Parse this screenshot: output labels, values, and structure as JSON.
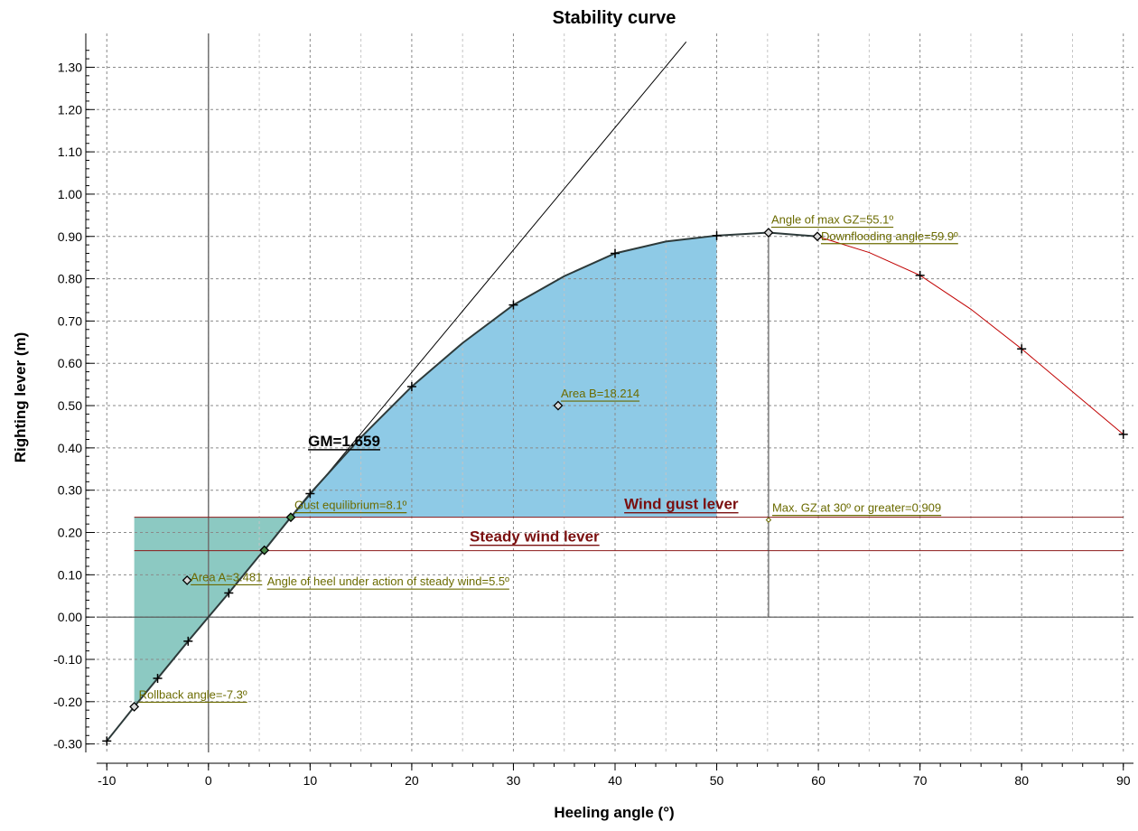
{
  "chart_data": {
    "type": "line",
    "title": "Stability curve",
    "xlabel": "Heeling angle (°)",
    "ylabel": "Righting lever (m)",
    "xlim": [
      -11,
      91
    ],
    "ylim": [
      -0.32,
      1.38
    ],
    "grid": true,
    "x_ticks": [
      "-10",
      "0",
      "10",
      "20",
      "30",
      "40",
      "50",
      "60",
      "70",
      "80",
      "90"
    ],
    "y_ticks": [
      "-0.30",
      "-0.20",
      "-0.10",
      "0.00",
      "0.10",
      "0.20",
      "0.30",
      "0.40",
      "0.50",
      "0.60",
      "0.70",
      "0.80",
      "0.90",
      "1.00",
      "1.10",
      "1.20",
      "1.30"
    ],
    "x_tick_values": [
      -10,
      0,
      10,
      20,
      30,
      40,
      50,
      60,
      70,
      80,
      90
    ],
    "y_tick_values": [
      -0.3,
      -0.2,
      -0.1,
      0.0,
      0.1,
      0.2,
      0.3,
      0.4,
      0.5,
      0.6,
      0.7,
      0.8,
      0.9,
      1.0,
      1.1,
      1.2,
      1.3
    ],
    "gz_curve": {
      "x": [
        -10,
        -7.3,
        -5,
        -2,
        0,
        2,
        5,
        5.5,
        8.1,
        10,
        15,
        20,
        25,
        30,
        35,
        40,
        45,
        50,
        55.1,
        59.9,
        65,
        70,
        75,
        80,
        85,
        90
      ],
      "y": [
        -0.293,
        -0.212,
        -0.145,
        -0.057,
        0.0,
        0.057,
        0.145,
        0.158,
        0.236,
        0.292,
        0.425,
        0.545,
        0.648,
        0.738,
        0.806,
        0.86,
        0.888,
        0.902,
        0.909,
        0.9,
        0.862,
        0.808,
        0.728,
        0.634,
        0.533,
        0.432
      ]
    },
    "downflooding_angle": 59.9,
    "gz_markers": {
      "x": [
        -10,
        -5,
        -2,
        2,
        10,
        20,
        30,
        40,
        50,
        70,
        80,
        90
      ],
      "y": [
        -0.293,
        -0.145,
        -0.057,
        0.057,
        0.292,
        0.545,
        0.738,
        0.86,
        0.902,
        0.808,
        0.634,
        0.432
      ]
    },
    "gm_tangent": {
      "x": [
        0,
        47
      ],
      "y": [
        0,
        1.36
      ]
    },
    "steady_wind_lever": 0.157,
    "wind_gust_lever": 0.236,
    "area_a_range": [
      -7.3,
      8.1
    ],
    "area_b_range": [
      8.1,
      50
    ],
    "max_gz_line": {
      "x": 55.1,
      "y": 0.909
    },
    "points": [
      {
        "x": -7.3,
        "y": -0.212,
        "label": "Rollback angle=-7.3º"
      },
      {
        "x": -2.1,
        "y": 0.087,
        "label": "Area A=3.481"
      },
      {
        "x": 5.5,
        "y": 0.158,
        "label": "Angle of heel under action of steady wind=5.5º"
      },
      {
        "x": 8.1,
        "y": 0.236,
        "label": "Gust equilibrium=8.1º"
      },
      {
        "x": 34.4,
        "y": 0.5,
        "label": "Area B=18.214"
      },
      {
        "x": 55.1,
        "y": 0.909,
        "label": "Angle of max GZ=55.1º"
      },
      {
        "x": 59.9,
        "y": 0.9,
        "label": "Downflooding angle=59.9º"
      }
    ],
    "labels": {
      "gm": "GM=1.659",
      "wind_gust": "Wind gust lever",
      "steady_wind": "Steady wind lever",
      "max_gz": "Max. GZ at 30º or greater=0.909"
    },
    "colors": {
      "area_a": "#8cc9c2",
      "area_b": "#8ecae6",
      "gz_curve": "#2d3a3a",
      "gz_after_downflooding": "#c00000",
      "wind_levers": "#8b1a1a",
      "annotation": "#6b6b00",
      "annotation_big": "#7a0f0f"
    }
  }
}
